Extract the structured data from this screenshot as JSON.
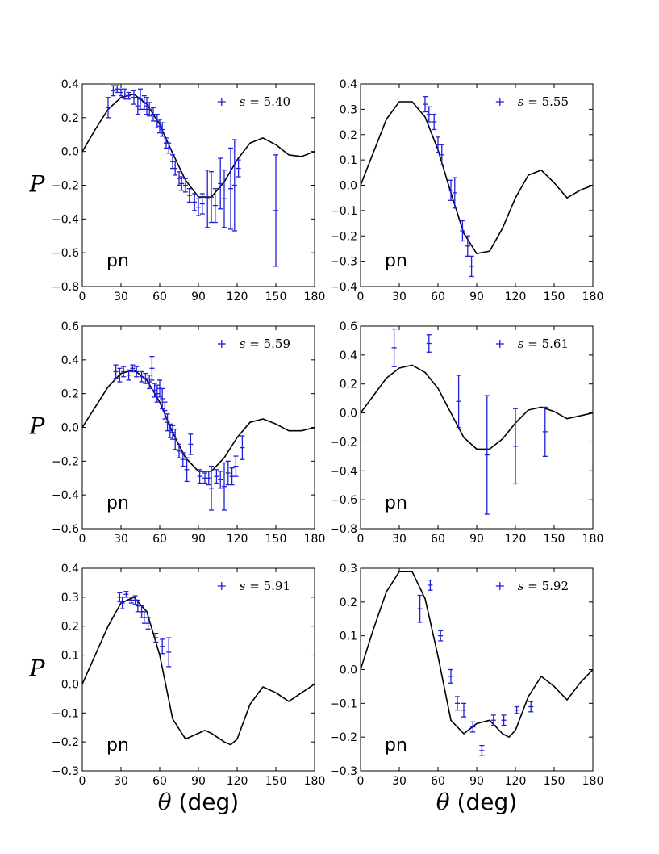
{
  "figure": {
    "ylabel": "P",
    "xlabel_symbol": "θ",
    "xlabel_unit": " (deg)",
    "colors": {
      "data": "#1f1fd8",
      "model": "#000000",
      "axes": "#000000"
    }
  },
  "chart_data": [
    {
      "type": "scatter",
      "panel_label": "pn",
      "legend": {
        "symbol": "s",
        "eq": " = ",
        "value": "5.40"
      },
      "xlim": [
        0,
        180
      ],
      "ylim": [
        -0.8,
        0.4
      ],
      "xticks": [
        "0",
        "30",
        "60",
        "90",
        "120",
        "150",
        "180"
      ],
      "yticks": [
        "−0.8",
        "−0.6",
        "−0.4",
        "−0.2",
        "0.0",
        "0.2",
        "0.4"
      ],
      "points": [
        {
          "x": 20,
          "y": 0.26,
          "err": 0.06
        },
        {
          "x": 24,
          "y": 0.36,
          "err": 0.03
        },
        {
          "x": 27,
          "y": 0.37,
          "err": 0.02
        },
        {
          "x": 30,
          "y": 0.35,
          "err": 0.02
        },
        {
          "x": 33,
          "y": 0.34,
          "err": 0.03
        },
        {
          "x": 36,
          "y": 0.33,
          "err": 0.02
        },
        {
          "x": 40,
          "y": 0.32,
          "err": 0.04
        },
        {
          "x": 43,
          "y": 0.27,
          "err": 0.05
        },
        {
          "x": 45,
          "y": 0.31,
          "err": 0.06
        },
        {
          "x": 48,
          "y": 0.29,
          "err": 0.04
        },
        {
          "x": 50,
          "y": 0.27,
          "err": 0.05
        },
        {
          "x": 52,
          "y": 0.25,
          "err": 0.04
        },
        {
          "x": 55,
          "y": 0.22,
          "err": 0.04
        },
        {
          "x": 58,
          "y": 0.18,
          "err": 0.04
        },
        {
          "x": 60,
          "y": 0.15,
          "err": 0.04
        },
        {
          "x": 62,
          "y": 0.13,
          "err": 0.04
        },
        {
          "x": 65,
          "y": 0.05,
          "err": 0.03
        },
        {
          "x": 67,
          "y": 0.02,
          "err": 0.03
        },
        {
          "x": 70,
          "y": -0.06,
          "err": 0.04
        },
        {
          "x": 72,
          "y": -0.1,
          "err": 0.04
        },
        {
          "x": 75,
          "y": -0.16,
          "err": 0.04
        },
        {
          "x": 77,
          "y": -0.19,
          "err": 0.04
        },
        {
          "x": 80,
          "y": -0.2,
          "err": 0.04
        },
        {
          "x": 83,
          "y": -0.26,
          "err": 0.04
        },
        {
          "x": 87,
          "y": -0.3,
          "err": 0.05
        },
        {
          "x": 90,
          "y": -0.33,
          "err": 0.05
        },
        {
          "x": 93,
          "y": -0.31,
          "err": 0.06
        },
        {
          "x": 97,
          "y": -0.28,
          "err": 0.17
        },
        {
          "x": 100,
          "y": -0.27,
          "err": 0.15
        },
        {
          "x": 103,
          "y": -0.32,
          "err": 0.1
        },
        {
          "x": 107,
          "y": -0.19,
          "err": 0.15
        },
        {
          "x": 110,
          "y": -0.28,
          "err": 0.17
        },
        {
          "x": 115,
          "y": -0.22,
          "err": 0.24
        },
        {
          "x": 118,
          "y": -0.2,
          "err": 0.27
        },
        {
          "x": 121,
          "y": -0.1,
          "err": 0.05
        },
        {
          "x": 150,
          "y": -0.35,
          "err": 0.33
        }
      ],
      "model": {
        "x": [
          0,
          10,
          20,
          30,
          40,
          50,
          60,
          70,
          80,
          90,
          100,
          110,
          120,
          130,
          140,
          150,
          160,
          170,
          180
        ],
        "y": [
          0.0,
          0.13,
          0.25,
          0.32,
          0.34,
          0.28,
          0.16,
          -0.01,
          -0.17,
          -0.27,
          -0.27,
          -0.18,
          -0.05,
          0.05,
          0.08,
          0.04,
          -0.02,
          -0.03,
          0.0
        ]
      }
    },
    {
      "type": "scatter",
      "panel_label": "pn",
      "legend": {
        "symbol": "s",
        "eq": " = ",
        "value": "5.55"
      },
      "xlim": [
        0,
        180
      ],
      "ylim": [
        -0.4,
        0.4
      ],
      "xticks": [
        "0",
        "30",
        "60",
        "90",
        "120",
        "150",
        "180"
      ],
      "yticks": [
        "−0.4",
        "−0.3",
        "−0.2",
        "−0.1",
        "0.0",
        "0.1",
        "0.2",
        "0.3",
        "0.4"
      ],
      "points": [
        {
          "x": 50,
          "y": 0.32,
          "err": 0.03
        },
        {
          "x": 53,
          "y": 0.28,
          "err": 0.03
        },
        {
          "x": 57,
          "y": 0.25,
          "err": 0.03
        },
        {
          "x": 60,
          "y": 0.16,
          "err": 0.03
        },
        {
          "x": 63,
          "y": 0.12,
          "err": 0.04
        },
        {
          "x": 70,
          "y": -0.02,
          "err": 0.04
        },
        {
          "x": 73,
          "y": -0.03,
          "err": 0.06
        },
        {
          "x": 79,
          "y": -0.18,
          "err": 0.04
        },
        {
          "x": 83,
          "y": -0.24,
          "err": 0.04
        },
        {
          "x": 86,
          "y": -0.32,
          "err": 0.04
        }
      ],
      "model": {
        "x": [
          0,
          10,
          20,
          30,
          40,
          50,
          60,
          70,
          80,
          90,
          100,
          110,
          120,
          130,
          140,
          150,
          160,
          170,
          180
        ],
        "y": [
          0.0,
          0.13,
          0.26,
          0.33,
          0.33,
          0.27,
          0.14,
          -0.03,
          -0.19,
          -0.27,
          -0.26,
          -0.17,
          -0.05,
          0.04,
          0.06,
          0.01,
          -0.05,
          -0.02,
          0.0
        ]
      }
    },
    {
      "type": "scatter",
      "panel_label": "pn",
      "legend": {
        "symbol": "s",
        "eq": " = ",
        "value": "5.59"
      },
      "xlim": [
        0,
        180
      ],
      "ylim": [
        -0.6,
        0.6
      ],
      "xticks": [
        "0",
        "30",
        "60",
        "90",
        "120",
        "150",
        "180"
      ],
      "yticks": [
        "−0.6",
        "−0.4",
        "−0.2",
        "0.0",
        "0.2",
        "0.4",
        "0.6"
      ],
      "points": [
        {
          "x": 26,
          "y": 0.33,
          "err": 0.04
        },
        {
          "x": 29,
          "y": 0.31,
          "err": 0.04
        },
        {
          "x": 32,
          "y": 0.33,
          "err": 0.03
        },
        {
          "x": 36,
          "y": 0.31,
          "err": 0.03
        },
        {
          "x": 39,
          "y": 0.35,
          "err": 0.02
        },
        {
          "x": 42,
          "y": 0.33,
          "err": 0.03
        },
        {
          "x": 46,
          "y": 0.3,
          "err": 0.03
        },
        {
          "x": 49,
          "y": 0.29,
          "err": 0.03
        },
        {
          "x": 52,
          "y": 0.27,
          "err": 0.04
        },
        {
          "x": 54,
          "y": 0.35,
          "err": 0.07
        },
        {
          "x": 56,
          "y": 0.22,
          "err": 0.04
        },
        {
          "x": 58,
          "y": 0.2,
          "err": 0.05
        },
        {
          "x": 60,
          "y": 0.23,
          "err": 0.05
        },
        {
          "x": 62,
          "y": 0.17,
          "err": 0.06
        },
        {
          "x": 64,
          "y": 0.1,
          "err": 0.05
        },
        {
          "x": 66,
          "y": 0.03,
          "err": 0.05
        },
        {
          "x": 68,
          "y": -0.02,
          "err": 0.04
        },
        {
          "x": 70,
          "y": -0.03,
          "err": 0.04
        },
        {
          "x": 72,
          "y": -0.07,
          "err": 0.06
        },
        {
          "x": 75,
          "y": -0.14,
          "err": 0.04
        },
        {
          "x": 78,
          "y": -0.19,
          "err": 0.04
        },
        {
          "x": 81,
          "y": -0.25,
          "err": 0.07
        },
        {
          "x": 84,
          "y": -0.1,
          "err": 0.06
        },
        {
          "x": 91,
          "y": -0.29,
          "err": 0.04
        },
        {
          "x": 95,
          "y": -0.3,
          "err": 0.03
        },
        {
          "x": 98,
          "y": -0.3,
          "err": 0.04
        },
        {
          "x": 100,
          "y": -0.36,
          "err": 0.13
        },
        {
          "x": 104,
          "y": -0.29,
          "err": 0.04
        },
        {
          "x": 107,
          "y": -0.31,
          "err": 0.05
        },
        {
          "x": 110,
          "y": -0.35,
          "err": 0.14
        },
        {
          "x": 113,
          "y": -0.27,
          "err": 0.07
        },
        {
          "x": 116,
          "y": -0.29,
          "err": 0.05
        },
        {
          "x": 119,
          "y": -0.23,
          "err": 0.06
        },
        {
          "x": 124,
          "y": -0.12,
          "err": 0.07
        }
      ],
      "model": {
        "x": [
          0,
          10,
          20,
          30,
          40,
          50,
          60,
          70,
          80,
          90,
          100,
          110,
          120,
          130,
          140,
          150,
          160,
          170,
          180
        ],
        "y": [
          0.0,
          0.12,
          0.24,
          0.32,
          0.34,
          0.28,
          0.15,
          -0.03,
          -0.18,
          -0.26,
          -0.26,
          -0.18,
          -0.06,
          0.03,
          0.05,
          0.02,
          -0.02,
          -0.02,
          0.0
        ]
      }
    },
    {
      "type": "scatter",
      "panel_label": "pn",
      "legend": {
        "symbol": "s",
        "eq": " = ",
        "value": "5.61"
      },
      "xlim": [
        0,
        180
      ],
      "ylim": [
        -0.8,
        0.6
      ],
      "xticks": [
        "0",
        "30",
        "60",
        "90",
        "120",
        "150",
        "180"
      ],
      "yticks": [
        "−0.8",
        "−0.6",
        "−0.4",
        "−0.2",
        "0.0",
        "0.2",
        "0.4",
        "0.6"
      ],
      "points": [
        {
          "x": 26,
          "y": 0.45,
          "err": 0.13
        },
        {
          "x": 53,
          "y": 0.48,
          "err": 0.06
        },
        {
          "x": 76,
          "y": 0.08,
          "err": 0.18
        },
        {
          "x": 98,
          "y": -0.29,
          "err": 0.41
        },
        {
          "x": 120,
          "y": -0.23,
          "err": 0.26
        },
        {
          "x": 143,
          "y": -0.13,
          "err": 0.17
        }
      ],
      "model": {
        "x": [
          0,
          10,
          20,
          30,
          40,
          50,
          60,
          70,
          80,
          90,
          100,
          110,
          120,
          130,
          140,
          150,
          160,
          170,
          180
        ],
        "y": [
          0.0,
          0.12,
          0.24,
          0.31,
          0.33,
          0.28,
          0.17,
          0.0,
          -0.17,
          -0.25,
          -0.25,
          -0.18,
          -0.07,
          0.02,
          0.04,
          0.01,
          -0.04,
          -0.02,
          0.0
        ]
      }
    },
    {
      "type": "scatter",
      "panel_label": "pn",
      "legend": {
        "symbol": "s",
        "eq": " = ",
        "value": "5.91"
      },
      "xlim": [
        0,
        180
      ],
      "ylim": [
        -0.3,
        0.4
      ],
      "xticks": [
        "0",
        "30",
        "60",
        "90",
        "120",
        "150",
        "180"
      ],
      "yticks": [
        "−0.3",
        "−0.2",
        "−0.1",
        "0.0",
        "0.1",
        "0.2",
        "0.3",
        "0.4"
      ],
      "points": [
        {
          "x": 29,
          "y": 0.3,
          "err": 0.015
        },
        {
          "x": 31,
          "y": 0.28,
          "err": 0.02
        },
        {
          "x": 34,
          "y": 0.31,
          "err": 0.01
        },
        {
          "x": 38,
          "y": 0.29,
          "err": 0.01
        },
        {
          "x": 41,
          "y": 0.29,
          "err": 0.015
        },
        {
          "x": 43,
          "y": 0.27,
          "err": 0.02
        },
        {
          "x": 46,
          "y": 0.25,
          "err": 0.02
        },
        {
          "x": 48,
          "y": 0.23,
          "err": 0.02
        },
        {
          "x": 51,
          "y": 0.21,
          "err": 0.02
        },
        {
          "x": 57,
          "y": 0.16,
          "err": 0.015
        },
        {
          "x": 62,
          "y": 0.13,
          "err": 0.025
        },
        {
          "x": 67,
          "y": 0.11,
          "err": 0.05
        }
      ],
      "model": {
        "x": [
          0,
          10,
          20,
          30,
          40,
          50,
          60,
          70,
          80,
          90,
          95,
          100,
          110,
          115,
          120,
          130,
          140,
          150,
          160,
          170,
          180
        ],
        "y": [
          0.0,
          0.1,
          0.2,
          0.28,
          0.3,
          0.25,
          0.1,
          -0.12,
          -0.19,
          -0.17,
          -0.16,
          -0.17,
          -0.2,
          -0.21,
          -0.19,
          -0.07,
          -0.01,
          -0.03,
          -0.06,
          -0.03,
          0.0
        ]
      }
    },
    {
      "type": "scatter",
      "panel_label": "pn",
      "legend": {
        "symbol": "s",
        "eq": " = ",
        "value": "5.92"
      },
      "xlim": [
        0,
        180
      ],
      "ylim": [
        -0.3,
        0.3
      ],
      "xticks": [
        "0",
        "30",
        "60",
        "90",
        "120",
        "150",
        "180"
      ],
      "yticks": [
        "−0.3",
        "−0.2",
        "−0.1",
        "0.0",
        "0.1",
        "0.2",
        "0.3"
      ],
      "points": [
        {
          "x": 46,
          "y": 0.18,
          "err": 0.04
        },
        {
          "x": 54,
          "y": 0.25,
          "err": 0.015
        },
        {
          "x": 62,
          "y": 0.1,
          "err": 0.015
        },
        {
          "x": 70,
          "y": -0.02,
          "err": 0.02
        },
        {
          "x": 75,
          "y": -0.1,
          "err": 0.02
        },
        {
          "x": 80,
          "y": -0.12,
          "err": 0.02
        },
        {
          "x": 87,
          "y": -0.17,
          "err": 0.015
        },
        {
          "x": 94,
          "y": -0.24,
          "err": 0.015
        },
        {
          "x": 103,
          "y": -0.15,
          "err": 0.015
        },
        {
          "x": 111,
          "y": -0.15,
          "err": 0.015
        },
        {
          "x": 121,
          "y": -0.12,
          "err": 0.01
        },
        {
          "x": 132,
          "y": -0.11,
          "err": 0.015
        }
      ],
      "model": {
        "x": [
          0,
          10,
          20,
          30,
          40,
          50,
          60,
          70,
          80,
          90,
          100,
          110,
          115,
          120,
          130,
          140,
          150,
          160,
          170,
          180
        ],
        "y": [
          0.0,
          0.12,
          0.23,
          0.29,
          0.29,
          0.21,
          0.04,
          -0.15,
          -0.19,
          -0.16,
          -0.15,
          -0.19,
          -0.2,
          -0.18,
          -0.08,
          -0.02,
          -0.05,
          -0.09,
          -0.04,
          0.0
        ]
      }
    }
  ]
}
